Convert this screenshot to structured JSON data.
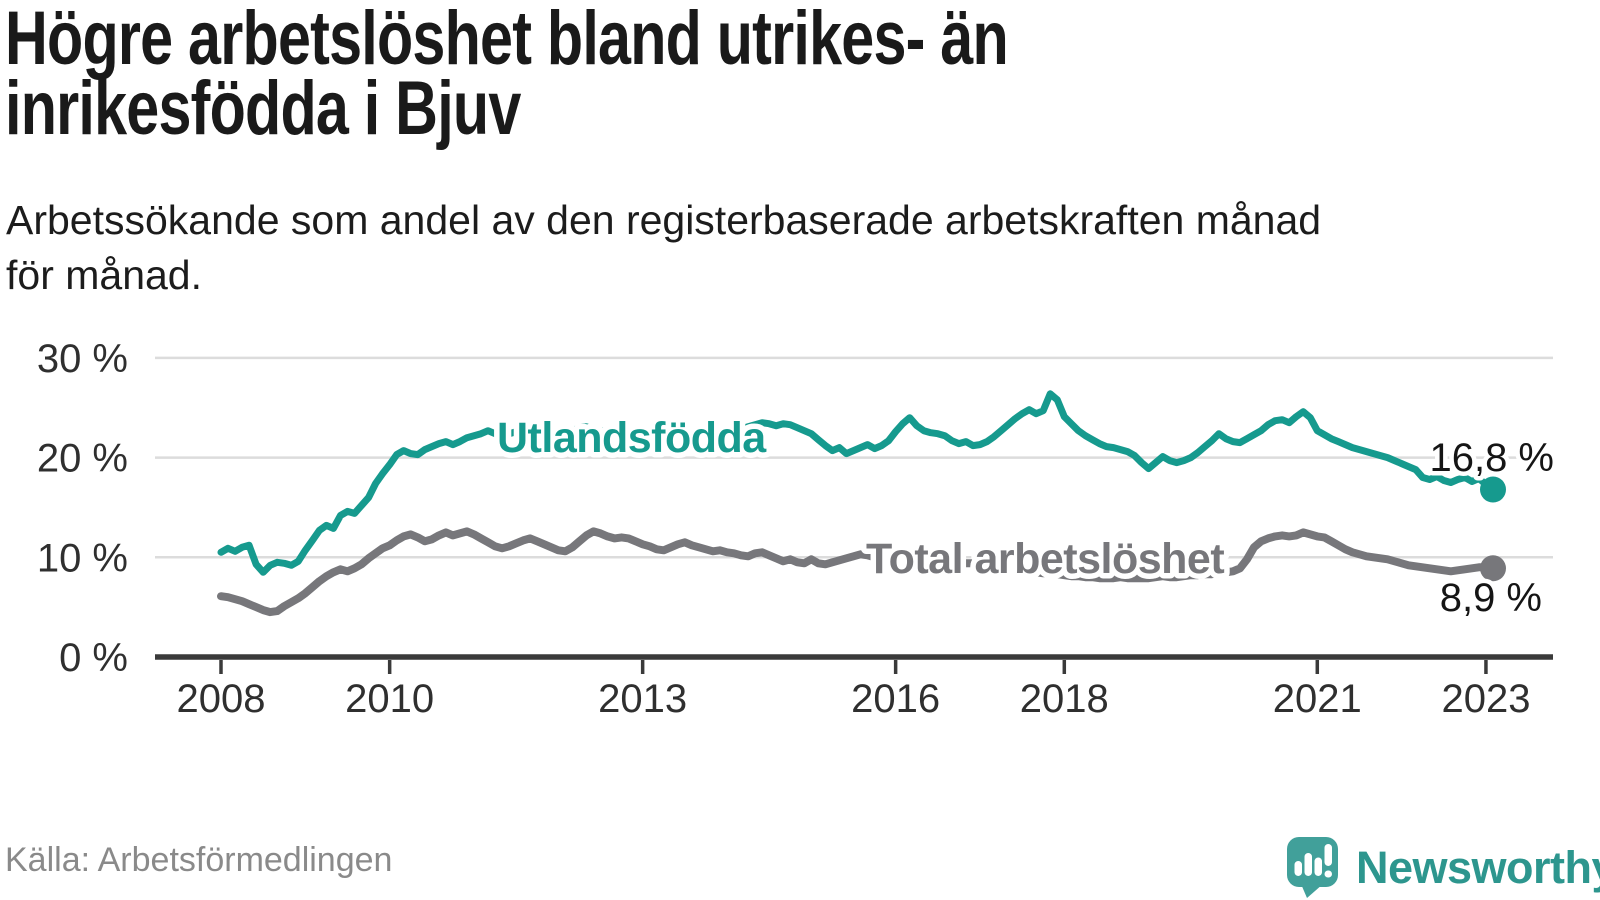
{
  "header": {
    "title_lines": [
      "Högre arbetslöshet bland utrikes- än",
      "inrikesfödda i Bjuv"
    ],
    "subtitle_lines": [
      "Arbetssökande som andel av den registerbaserade arbetskraften månad",
      "för månad."
    ]
  },
  "footer": {
    "source": "Källa: Arbetsförmedlingen",
    "brand": "Newsworthy"
  },
  "colors": {
    "grid": "#dcdcdc",
    "axis": "#3a3a3a",
    "tick_text": "#2f2f2f",
    "title_text": "#1a1a1a",
    "source_text": "#8a8a8a",
    "brand_teal": "#2d968e",
    "logo_background": "#41a09a"
  },
  "chart_data": {
    "type": "line",
    "frequency": "monthly",
    "x_start": "2008-01",
    "x_end": "2023-02",
    "x_tick_years": [
      2008,
      2010,
      2013,
      2016,
      2018,
      2021,
      2023
    ],
    "x_tick_labels": [
      "2008",
      "2010",
      "2013",
      "2016",
      "2018",
      "2021",
      "2023"
    ],
    "y_ticks": [
      {
        "value": 0,
        "label": "0 %"
      },
      {
        "value": 10,
        "label": "10 %"
      },
      {
        "value": 20,
        "label": "20 %"
      },
      {
        "value": 30,
        "label": "30 %"
      }
    ],
    "ylim": [
      0,
      31
    ],
    "grid": "horizontal",
    "legend_position": "inline-labels",
    "series": [
      {
        "name": "Utlandsfödda",
        "color": "#169a8e",
        "end_label": "16,8 %",
        "end_value": 16.8,
        "values": [
          10.5,
          10.9,
          10.6,
          11.0,
          11.2,
          9.3,
          8.5,
          9.2,
          9.5,
          9.4,
          9.2,
          9.6,
          10.7,
          11.7,
          12.7,
          13.2,
          12.9,
          14.2,
          14.6,
          14.4,
          15.2,
          16.0,
          17.4,
          18.4,
          19.3,
          20.3,
          20.7,
          20.4,
          20.3,
          20.8,
          21.1,
          21.4,
          21.6,
          21.3,
          21.6,
          22.0,
          22.2,
          22.4,
          22.7,
          22.4,
          22.2,
          22.4,
          22.6,
          22.8,
          22.6,
          22.4,
          22.5,
          22.7,
          22.5,
          22.4,
          22.7,
          23.0,
          23.1,
          22.8,
          22.6,
          22.8,
          23.0,
          22.8,
          22.6,
          22.8,
          22.6,
          22.4,
          22.3,
          22.5,
          22.7,
          22.5,
          22.3,
          22.4,
          22.6,
          22.4,
          22.5,
          22.7,
          22.5,
          22.7,
          22.9,
          23.1,
          23.3,
          23.5,
          23.4,
          23.2,
          23.4,
          23.3,
          23.0,
          22.7,
          22.4,
          21.8,
          21.2,
          20.7,
          21.0,
          20.4,
          20.7,
          21.0,
          21.3,
          20.9,
          21.2,
          21.7,
          22.6,
          23.4,
          24.0,
          23.2,
          22.7,
          22.5,
          22.4,
          22.2,
          21.7,
          21.4,
          21.6,
          21.2,
          21.3,
          21.6,
          22.1,
          22.7,
          23.3,
          23.9,
          24.4,
          24.8,
          24.4,
          24.7,
          26.4,
          25.8,
          24.1,
          23.4,
          22.7,
          22.2,
          21.8,
          21.4,
          21.1,
          21.0,
          20.8,
          20.6,
          20.2,
          19.5,
          18.9,
          19.5,
          20.1,
          19.7,
          19.5,
          19.7,
          20.0,
          20.5,
          21.1,
          21.7,
          22.4,
          21.9,
          21.6,
          21.5,
          21.9,
          22.3,
          22.7,
          23.3,
          23.7,
          23.8,
          23.5,
          24.1,
          24.6,
          24.0,
          22.7,
          22.3,
          21.9,
          21.6,
          21.3,
          21.0,
          20.8,
          20.6,
          20.4,
          20.2,
          20.0,
          19.7,
          19.4,
          19.1,
          18.8,
          18.0,
          17.8,
          18.1,
          17.7,
          17.5,
          17.8,
          18.0,
          17.6,
          17.9,
          17.3,
          16.8
        ]
      },
      {
        "name": "Total arbetslöshet",
        "color": "#77777b",
        "end_label": "8,9 %",
        "end_value": 8.9,
        "values": [
          6.1,
          6.0,
          5.8,
          5.6,
          5.3,
          5.0,
          4.7,
          4.5,
          4.6,
          5.1,
          5.5,
          5.9,
          6.4,
          7.0,
          7.6,
          8.1,
          8.5,
          8.8,
          8.6,
          8.9,
          9.3,
          9.9,
          10.4,
          10.9,
          11.2,
          11.7,
          12.1,
          12.3,
          12.0,
          11.6,
          11.8,
          12.2,
          12.5,
          12.2,
          12.4,
          12.6,
          12.3,
          11.9,
          11.5,
          11.1,
          10.9,
          11.1,
          11.4,
          11.7,
          11.9,
          11.6,
          11.3,
          11.0,
          10.7,
          10.6,
          11.0,
          11.6,
          12.2,
          12.6,
          12.4,
          12.1,
          11.9,
          12.0,
          11.9,
          11.6,
          11.3,
          11.1,
          10.8,
          10.7,
          11.0,
          11.3,
          11.5,
          11.2,
          11.0,
          10.8,
          10.6,
          10.7,
          10.5,
          10.4,
          10.2,
          10.1,
          10.4,
          10.5,
          10.2,
          9.9,
          9.6,
          9.8,
          9.5,
          9.4,
          9.8,
          9.4,
          9.3,
          9.5,
          9.7,
          9.9,
          10.1,
          10.3,
          10.2,
          10.0,
          9.9,
          9.8,
          9.9,
          10.0,
          10.1,
          10.0,
          9.9,
          9.8,
          9.7,
          9.6,
          9.6,
          9.5,
          9.4,
          9.4,
          9.3,
          9.2,
          9.1,
          9.0,
          8.9,
          8.8,
          8.7,
          8.6,
          8.5,
          8.4,
          8.4,
          8.3,
          8.2,
          8.1,
          8.1,
          8.0,
          8.0,
          7.9,
          7.9,
          7.9,
          8.0,
          7.9,
          7.9,
          7.9,
          7.9,
          8.0,
          8.1,
          8.0,
          8.0,
          8.1,
          8.2,
          8.2,
          8.3,
          8.3,
          8.4,
          8.5,
          8.6,
          8.9,
          9.8,
          11.0,
          11.6,
          11.9,
          12.1,
          12.2,
          12.1,
          12.2,
          12.5,
          12.3,
          12.1,
          12.0,
          11.6,
          11.2,
          10.8,
          10.5,
          10.3,
          10.1,
          10.0,
          9.9,
          9.8,
          9.6,
          9.4,
          9.2,
          9.1,
          9.0,
          8.9,
          8.8,
          8.7,
          8.6,
          8.7,
          8.8,
          8.9,
          9.0,
          9.0,
          8.9
        ]
      }
    ]
  }
}
